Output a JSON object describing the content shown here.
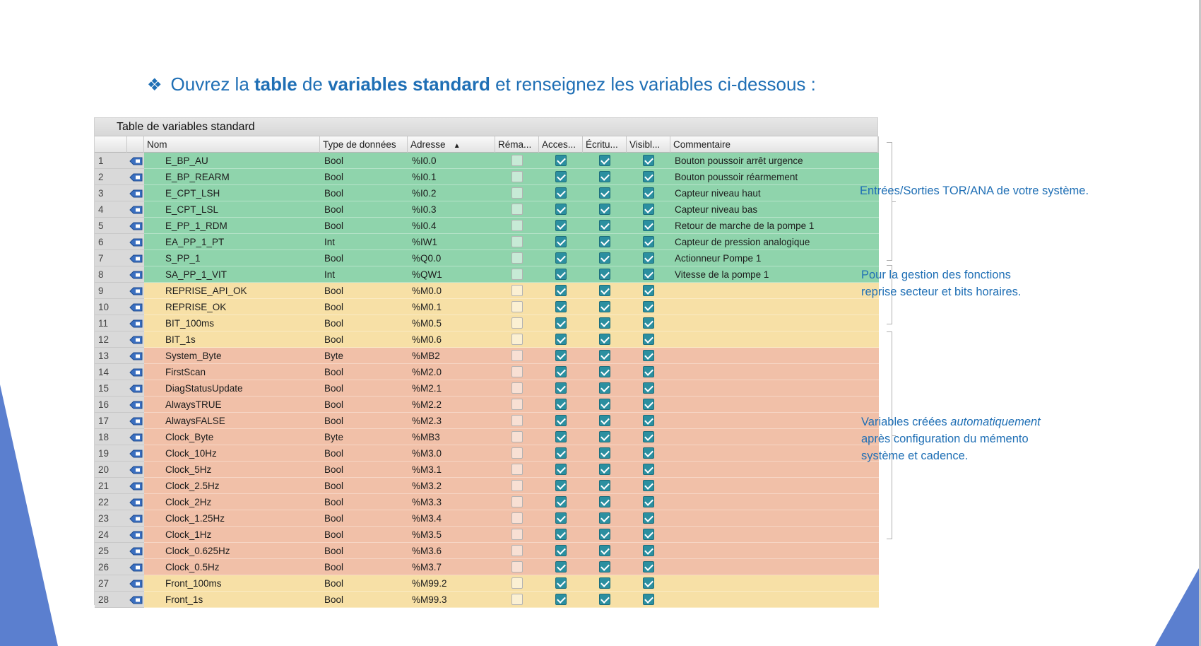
{
  "heading": {
    "bullet": "❖",
    "part1": "Ouvrez la ",
    "bold1": "table",
    "part2": " de ",
    "bold2": "variables standard",
    "part3": " et renseignez les variables ci-dessous :"
  },
  "table": {
    "title": "Table de variables standard",
    "columns": {
      "nom": "Nom",
      "type": "Type de données",
      "adresse": "Adresse",
      "sort_indicator": "▲",
      "rema": "Réma...",
      "acces": "Acces...",
      "ecriture": "Écritu...",
      "visible": "Visibl...",
      "commentaire": "Commentaire"
    },
    "rows": [
      {
        "num": "1",
        "nom": "E_BP_AU",
        "type": "Bool",
        "adresse": "%I0.0",
        "comment": "Bouton poussoir arrêt urgence",
        "group": "io"
      },
      {
        "num": "2",
        "nom": "E_BP_REARM",
        "type": "Bool",
        "adresse": "%I0.1",
        "comment": "Bouton poussoir réarmement",
        "group": "io"
      },
      {
        "num": "3",
        "nom": "E_CPT_LSH",
        "type": "Bool",
        "adresse": "%I0.2",
        "comment": "Capteur niveau haut",
        "group": "io"
      },
      {
        "num": "4",
        "nom": "E_CPT_LSL",
        "type": "Bool",
        "adresse": "%I0.3",
        "comment": "Capteur niveau bas",
        "group": "io"
      },
      {
        "num": "5",
        "nom": "E_PP_1_RDM",
        "type": "Bool",
        "adresse": "%I0.4",
        "comment": "Retour de marche de la pompe 1",
        "group": "io"
      },
      {
        "num": "6",
        "nom": "EA_PP_1_PT",
        "type": "Int",
        "adresse": "%IW1",
        "comment": "Capteur de pression analogique",
        "group": "io"
      },
      {
        "num": "7",
        "nom": "S_PP_1",
        "type": "Bool",
        "adresse": "%Q0.0",
        "comment": "Actionneur Pompe 1",
        "group": "io"
      },
      {
        "num": "8",
        "nom": "SA_PP_1_VIT",
        "type": "Int",
        "adresse": "%QW1",
        "comment": "Vitesse de la pompe 1",
        "group": "io"
      },
      {
        "num": "9",
        "nom": "REPRISE_API_OK",
        "type": "Bool",
        "adresse": "%M0.0",
        "comment": "",
        "group": "rep"
      },
      {
        "num": "10",
        "nom": "REPRISE_OK",
        "type": "Bool",
        "adresse": "%M0.1",
        "comment": "",
        "group": "rep"
      },
      {
        "num": "11",
        "nom": "BIT_100ms",
        "type": "Bool",
        "adresse": "%M0.5",
        "comment": "",
        "group": "rep"
      },
      {
        "num": "12",
        "nom": "BIT_1s",
        "type": "Bool",
        "adresse": "%M0.6",
        "comment": "",
        "group": "rep"
      },
      {
        "num": "13",
        "nom": "System_Byte",
        "type": "Byte",
        "adresse": "%MB2",
        "comment": "",
        "group": "sys"
      },
      {
        "num": "14",
        "nom": "FirstScan",
        "type": "Bool",
        "adresse": "%M2.0",
        "comment": "",
        "group": "sys"
      },
      {
        "num": "15",
        "nom": "DiagStatusUpdate",
        "type": "Bool",
        "adresse": "%M2.1",
        "comment": "",
        "group": "sys"
      },
      {
        "num": "16",
        "nom": "AlwaysTRUE",
        "type": "Bool",
        "adresse": "%M2.2",
        "comment": "",
        "group": "sys"
      },
      {
        "num": "17",
        "nom": "AlwaysFALSE",
        "type": "Bool",
        "adresse": "%M2.3",
        "comment": "",
        "group": "sys"
      },
      {
        "num": "18",
        "nom": "Clock_Byte",
        "type": "Byte",
        "adresse": "%MB3",
        "comment": "",
        "group": "sys"
      },
      {
        "num": "19",
        "nom": "Clock_10Hz",
        "type": "Bool",
        "adresse": "%M3.0",
        "comment": "",
        "group": "sys"
      },
      {
        "num": "20",
        "nom": "Clock_5Hz",
        "type": "Bool",
        "adresse": "%M3.1",
        "comment": "",
        "group": "sys"
      },
      {
        "num": "21",
        "nom": "Clock_2.5Hz",
        "type": "Bool",
        "adresse": "%M3.2",
        "comment": "",
        "group": "sys"
      },
      {
        "num": "22",
        "nom": "Clock_2Hz",
        "type": "Bool",
        "adresse": "%M3.3",
        "comment": "",
        "group": "sys"
      },
      {
        "num": "23",
        "nom": "Clock_1.25Hz",
        "type": "Bool",
        "adresse": "%M3.4",
        "comment": "",
        "group": "sys"
      },
      {
        "num": "24",
        "nom": "Clock_1Hz",
        "type": "Bool",
        "adresse": "%M3.5",
        "comment": "",
        "group": "sys"
      },
      {
        "num": "25",
        "nom": "Clock_0.625Hz",
        "type": "Bool",
        "adresse": "%M3.6",
        "comment": "",
        "group": "sys"
      },
      {
        "num": "26",
        "nom": "Clock_0.5Hz",
        "type": "Bool",
        "adresse": "%M3.7",
        "comment": "",
        "group": "sys"
      },
      {
        "num": "27",
        "nom": "Front_100ms",
        "type": "Bool",
        "adresse": "%M99.2",
        "comment": "",
        "group": "front"
      },
      {
        "num": "28",
        "nom": "Front_1s",
        "type": "Bool",
        "adresse": "%M99.3",
        "comment": "",
        "group": "front"
      }
    ],
    "checkbox_states": {
      "remanent": false,
      "accessible": true,
      "ecriture": true,
      "visible": true
    }
  },
  "notes": {
    "io": "Entrées/Sorties TOR/ANA de votre système.",
    "rep_line1": "Pour la gestion des fonctions",
    "rep_line2": "reprise secteur et bits horaires.",
    "sys_line1_a": "Variables créées ",
    "sys_line1_i": "automatiquement",
    "sys_line2": "après configuration du mémento",
    "sys_line3": "système et cadence."
  },
  "colors": {
    "accent": "#1f6fb5",
    "group_io": "#8fd4ac",
    "group_rep": "#f7e0a6",
    "group_sys": "#f1c0a8",
    "checkbox": "#2b8fa0",
    "triangle": "#5b7fcf"
  }
}
